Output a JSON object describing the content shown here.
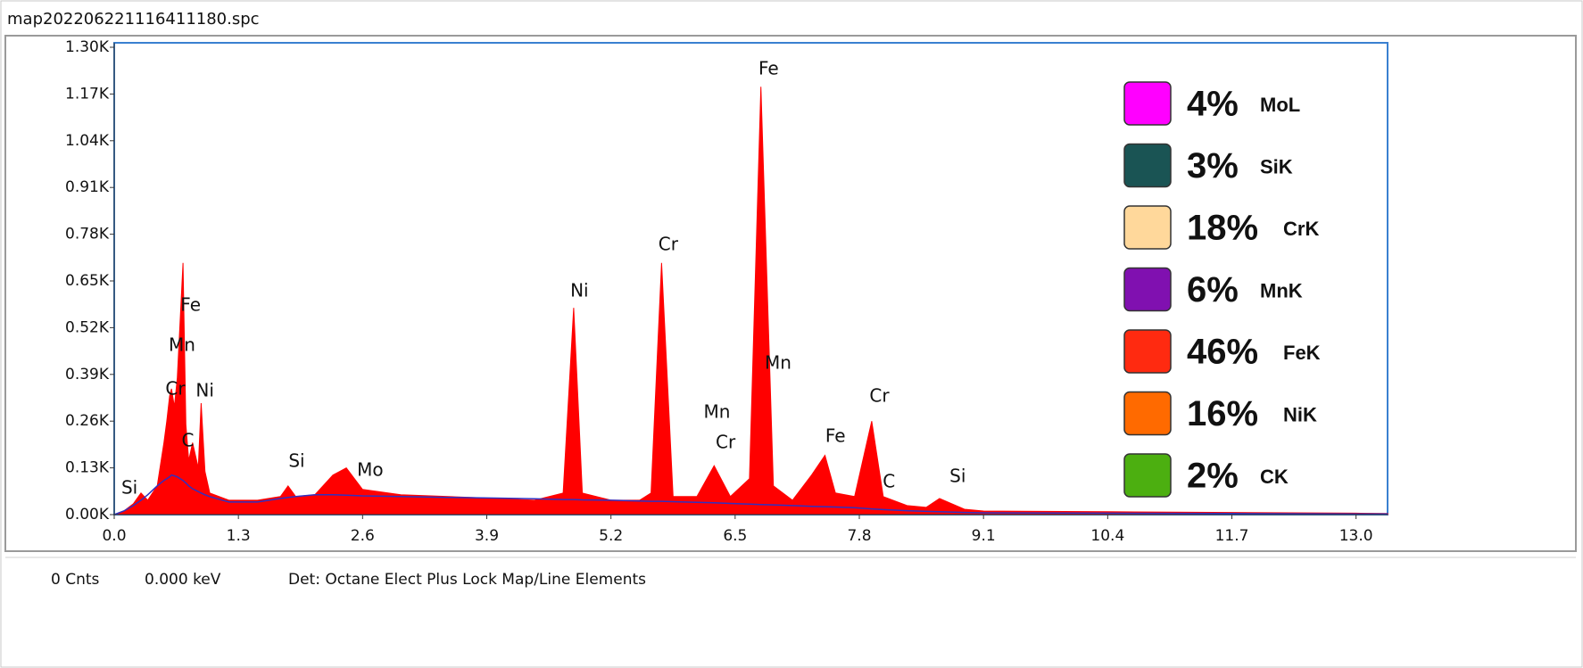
{
  "chart_data": {
    "type": "area",
    "title": "map202206221116411180.spc",
    "status": [
      "0 Cnts",
      "0.000 keV",
      "Det: Octane Elect Plus Lock Map/Line Elements"
    ],
    "xlim": [
      0,
      13.33
    ],
    "ylim": [
      0,
      1300
    ],
    "xticks": [
      {
        "value": 0,
        "label": "0.0"
      },
      1.3,
      2.6,
      3.9,
      5.2,
      6.5,
      7.8,
      9.1,
      10.4,
      11.7,
      {
        "value": 13,
        "label": "13.0"
      }
    ],
    "yticks": [
      {
        "value": 0,
        "label": "0.00K"
      },
      {
        "value": 130,
        "label": "0.13K"
      },
      {
        "value": 260,
        "label": "0.26K"
      },
      {
        "value": 390,
        "label": "0.39K"
      },
      {
        "value": 520,
        "label": "0.52K"
      },
      {
        "value": 650,
        "label": "0.65K"
      },
      {
        "value": 780,
        "label": "0.78K"
      },
      {
        "value": 910,
        "label": "0.91K"
      },
      {
        "value": 1040,
        "label": "1.04K"
      },
      {
        "value": 1170,
        "label": "1.17K"
      },
      {
        "value": 1300,
        "label": "1.30K"
      }
    ],
    "x": [
      0,
      0.1,
      0.2,
      0.28,
      0.35,
      0.45,
      0.52,
      0.55,
      0.58,
      0.6,
      0.63,
      0.66,
      0.72,
      0.75,
      0.78,
      0.82,
      0.88,
      0.91,
      0.95,
      1.0,
      1.2,
      1.5,
      1.74,
      1.82,
      1.9,
      2.1,
      2.29,
      2.43,
      2.6,
      3.0,
      3.5,
      4.0,
      4.4,
      4.7,
      4.81,
      4.9,
      5.2,
      5.5,
      5.62,
      5.73,
      5.85,
      6.1,
      6.28,
      6.45,
      6.65,
      6.77,
      6.9,
      7.1,
      7.3,
      7.44,
      7.55,
      7.75,
      7.93,
      8.05,
      8.3,
      8.5,
      8.64,
      8.9,
      9.1,
      10.4,
      11.7,
      13.0,
      13.33
    ],
    "series": [
      {
        "color": "#ff0000",
        "values": [
          0,
          10,
          30,
          60,
          40,
          80,
          200,
          260,
          330,
          350,
          300,
          380,
          700,
          250,
          150,
          200,
          130,
          310,
          120,
          60,
          40,
          40,
          50,
          80,
          50,
          55,
          110,
          130,
          70,
          55,
          50,
          45,
          40,
          60,
          575,
          60,
          40,
          40,
          60,
          700,
          50,
          50,
          136,
          50,
          100,
          1190,
          80,
          40,
          110,
          165,
          60,
          50,
          260,
          50,
          25,
          20,
          45,
          15,
          10,
          8,
          6,
          4,
          3
        ]
      },
      {
        "color": "#3030c0",
        "values": [
          0,
          10,
          25,
          40,
          55,
          80,
          95,
          100,
          105,
          110,
          108,
          105,
          95,
          88,
          80,
          72,
          64,
          60,
          55,
          50,
          35,
          35,
          45,
          48,
          50,
          55,
          55,
          54,
          52,
          50,
          48,
          46,
          44,
          42,
          42,
          41,
          40,
          38,
          37,
          37,
          36,
          34,
          33,
          31,
          29,
          28,
          27,
          25,
          23,
          22,
          21,
          19,
          16,
          14,
          11,
          9,
          8,
          6,
          5,
          4,
          3,
          2,
          2
        ]
      }
    ],
    "annotations": [
      {
        "text": "Si",
        "x": 0.16,
        "y": 72
      },
      {
        "text": "Fe",
        "x": 0.8,
        "y": 580
      },
      {
        "text": "Mn",
        "x": 0.71,
        "y": 469
      },
      {
        "text": "Cr",
        "x": 0.64,
        "y": 347
      },
      {
        "text": "Ni",
        "x": 0.95,
        "y": 342
      },
      {
        "text": "C",
        "x": 0.77,
        "y": 203
      },
      {
        "text": "Si",
        "x": 1.91,
        "y": 146
      },
      {
        "text": "Mo",
        "x": 2.68,
        "y": 122
      },
      {
        "text": "Ni",
        "x": 4.87,
        "y": 620
      },
      {
        "text": "Cr",
        "x": 5.8,
        "y": 749
      },
      {
        "text": "Fe",
        "x": 6.85,
        "y": 1238
      },
      {
        "text": "Mn",
        "x": 6.95,
        "y": 419
      },
      {
        "text": "Mn",
        "x": 6.31,
        "y": 283
      },
      {
        "text": "Cr",
        "x": 6.4,
        "y": 199
      },
      {
        "text": "Fe",
        "x": 7.55,
        "y": 216
      },
      {
        "text": "Cr",
        "x": 8.01,
        "y": 328
      },
      {
        "text": "C",
        "x": 8.11,
        "y": 89
      },
      {
        "text": "Si",
        "x": 8.83,
        "y": 104
      }
    ],
    "composition": {
      "labels": [
        "MoL",
        "SiK",
        "CrK",
        "MnK",
        "FeK",
        "NiK",
        "CK"
      ],
      "values": [
        4,
        3,
        18,
        6,
        46,
        16,
        2
      ],
      "value_labels": [
        "4%",
        "3%",
        "18%",
        "6%",
        "46%",
        "16%",
        "2%"
      ],
      "colors": [
        "#ff00ff",
        "#1a5454",
        "#ffd89b",
        "#8010b0",
        "#ff2a10",
        "#ff6a00",
        "#4caf10"
      ]
    }
  }
}
